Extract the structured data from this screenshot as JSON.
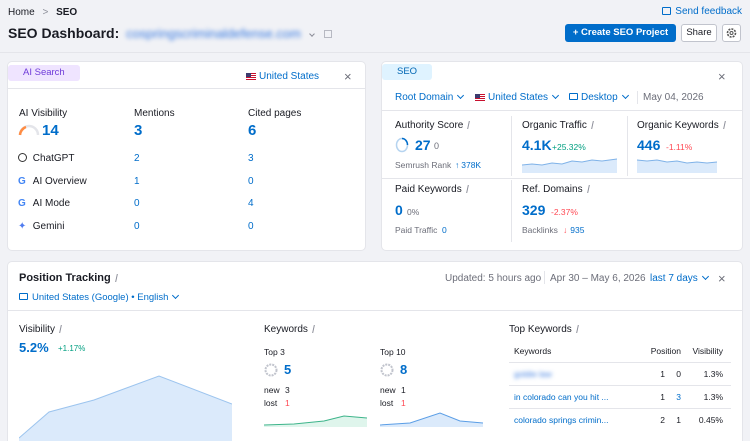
{
  "breadcrumb": {
    "home": "Home",
    "separator": ">",
    "current": "SEO"
  },
  "header": {
    "title_prefix": "SEO Dashboard:",
    "domain": "cospringscriminaldefense.com",
    "feedback_label": "Send feedback",
    "create_button": "+ Create SEO Project",
    "share_button": "Share"
  },
  "ai_search": {
    "tag": "AI Search",
    "country": "United States",
    "headers": {
      "visibility": "AI Visibility",
      "mentions": "Mentions",
      "cited": "Cited pages"
    },
    "totals": {
      "visibility": "14",
      "mentions": "3",
      "cited": "6"
    },
    "rows": [
      {
        "name": "ChatGPT",
        "icon": "chatgpt-icon",
        "mentions": "2",
        "cited": "3"
      },
      {
        "name": "AI Overview",
        "icon": "google-icon",
        "mentions": "1",
        "cited": "0"
      },
      {
        "name": "AI Mode",
        "icon": "google-icon",
        "mentions": "0",
        "cited": "4"
      },
      {
        "name": "Gemini",
        "icon": "gemini-icon",
        "mentions": "0",
        "cited": "0"
      }
    ]
  },
  "seo": {
    "tag": "SEO",
    "filters": {
      "root": "Root Domain",
      "country": "United States",
      "device": "Desktop",
      "date": "May 04, 2026"
    },
    "authority": {
      "label": "Authority Score",
      "value": "27",
      "delta": "0",
      "sub_label": "Semrush Rank",
      "sub_value": "378K"
    },
    "organic_traffic": {
      "label": "Organic Traffic",
      "value": "4.1K",
      "delta": "+25.32%"
    },
    "organic_keywords": {
      "label": "Organic Keywords",
      "value": "446",
      "delta": "-1.11%"
    },
    "paid_keywords": {
      "label": "Paid Keywords",
      "value": "0",
      "delta": "0%",
      "sub_label": "Paid Traffic",
      "sub_value": "0"
    },
    "ref_domains": {
      "label": "Ref. Domains",
      "value": "329",
      "delta": "-2.37%",
      "sub_label": "Backlinks",
      "sub_value": "935"
    }
  },
  "position_tracking": {
    "title": "Position Tracking",
    "updated": "Updated: 5 hours ago",
    "date_range": "Apr 30 – May 6, 2026",
    "period": "last 7 days",
    "location": "United States (Google) • English",
    "visibility": {
      "label": "Visibility",
      "value": "5.2%",
      "delta": "+1.17%"
    },
    "keywords": {
      "label": "Keywords",
      "top3": {
        "label": "Top 3",
        "value": "5",
        "new_label": "new",
        "new": "3",
        "lost_label": "lost",
        "lost": "1"
      },
      "top10": {
        "label": "Top 10",
        "value": "8",
        "new_label": "new",
        "new": "1",
        "lost_label": "lost",
        "lost": "1"
      }
    },
    "top_keywords": {
      "label": "Top Keywords",
      "columns": [
        "Keywords",
        "Position",
        "Visibility"
      ],
      "rows": [
        {
          "keyword": "goldie law",
          "position": "1",
          "change": "0",
          "visibility": "1.3%"
        },
        {
          "keyword": "in colorado can you hit ...",
          "position": "1",
          "change": "3",
          "visibility": "1.3%"
        },
        {
          "keyword": "colorado springs crimin...",
          "position": "2",
          "change": "1",
          "visibility": "0.45%"
        }
      ]
    }
  }
}
